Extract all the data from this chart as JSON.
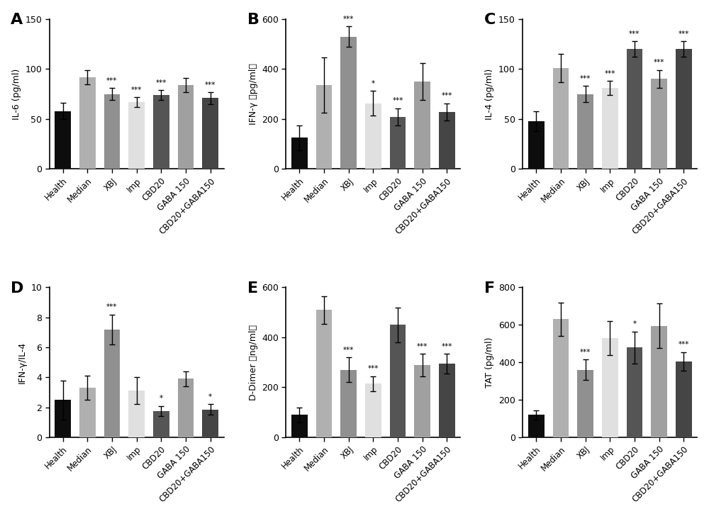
{
  "categories": [
    "Health",
    "Median",
    "XBJ",
    "Imp",
    "CBD20",
    "GABA 150",
    "CBD20+GABA150"
  ],
  "panels": [
    {
      "label": "A",
      "ylabel": "IL-6 (pg/ml)",
      "ylim": [
        0,
        150
      ],
      "yticks": [
        0,
        50,
        100,
        150
      ],
      "values": [
        58,
        92,
        75,
        67,
        74,
        84,
        71
      ],
      "errors": [
        8,
        7,
        6,
        5,
        5,
        7,
        6
      ],
      "sig": [
        "",
        "",
        "***",
        "***",
        "***",
        "",
        "***"
      ]
    },
    {
      "label": "B",
      "ylabel": "IFN-γ （pg/ml）",
      "ylim": [
        0,
        600
      ],
      "yticks": [
        0,
        200,
        400,
        600
      ],
      "values": [
        125,
        335,
        530,
        263,
        208,
        350,
        228
      ],
      "errors": [
        50,
        110,
        40,
        50,
        35,
        75,
        35
      ],
      "sig": [
        "",
        "",
        "***",
        "*",
        "***",
        "",
        "***"
      ]
    },
    {
      "label": "C",
      "ylabel": "IL-4 (pg/ml)",
      "ylim": [
        0,
        150
      ],
      "yticks": [
        0,
        50,
        100,
        150
      ],
      "values": [
        48,
        101,
        75,
        81,
        120,
        90,
        120
      ],
      "errors": [
        10,
        14,
        8,
        7,
        8,
        9,
        8
      ],
      "sig": [
        "",
        "",
        "***",
        "***",
        "***",
        "***",
        "***"
      ]
    },
    {
      "label": "D",
      "ylabel": "IFN-γ/IL-4",
      "ylim": [
        0,
        10
      ],
      "yticks": [
        0,
        2,
        4,
        6,
        8,
        10
      ],
      "values": [
        2.5,
        3.3,
        7.2,
        3.1,
        1.75,
        3.9,
        1.85
      ],
      "errors": [
        1.3,
        0.8,
        1.0,
        0.9,
        0.35,
        0.5,
        0.35
      ],
      "sig": [
        "",
        "",
        "***",
        "",
        "*",
        "",
        "*"
      ]
    },
    {
      "label": "E",
      "ylabel": "D-Dimer （ng/ml）",
      "ylim": [
        0,
        600
      ],
      "yticks": [
        0,
        200,
        400,
        600
      ],
      "values": [
        90,
        510,
        270,
        215,
        450,
        290,
        295
      ],
      "errors": [
        30,
        55,
        50,
        30,
        70,
        45,
        40
      ],
      "sig": [
        "",
        "",
        "***",
        "***",
        "",
        "***",
        "***"
      ]
    },
    {
      "label": "F",
      "ylabel": "TAT (pg/ml)",
      "ylim": [
        0,
        800
      ],
      "yticks": [
        0,
        200,
        400,
        600,
        800
      ],
      "values": [
        120,
        630,
        360,
        530,
        480,
        595,
        405
      ],
      "errors": [
        25,
        90,
        55,
        90,
        85,
        120,
        50
      ],
      "sig": [
        "",
        "",
        "***",
        "",
        "*",
        "",
        "***"
      ]
    }
  ],
  "colors": [
    "#0d0d0d",
    "#b0b0b0",
    "#909090",
    "#e0e0e0",
    "#555555",
    "#a0a0a0",
    "#454545"
  ],
  "background_color": "#ffffff"
}
